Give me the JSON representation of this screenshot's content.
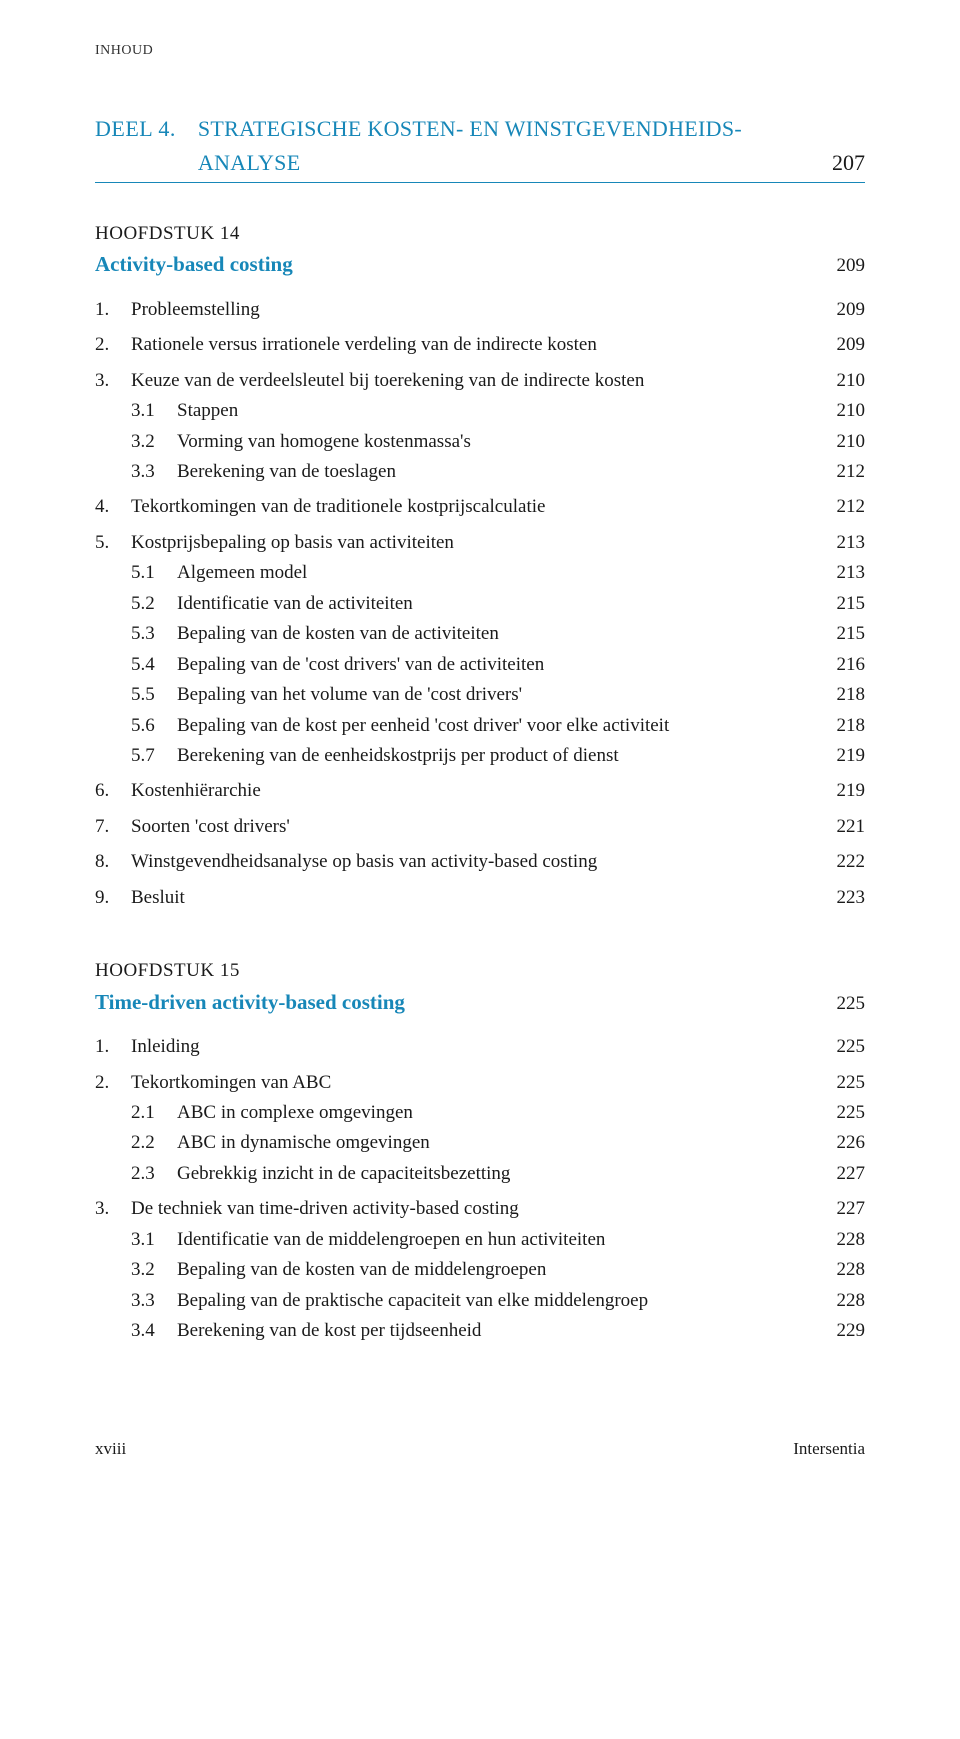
{
  "colors": {
    "accent": "#1787b8",
    "rule": "#1787b8",
    "text": "#1a1a1a"
  },
  "runningHead": "INHOUD",
  "part": {
    "label": "DEEL 4.",
    "title": "STRATEGISCHE KOSTEN- EN WINSTGEVENDHEIDS­ANALYSE",
    "titleLine1": "STRATEGISCHE KOSTEN- EN WINSTGEVENDHEIDS-",
    "titleLine2": "ANALYSE",
    "page": "207"
  },
  "chapters": [
    {
      "label": "HOOFDSTUK 14",
      "title": "Activity-based costing",
      "page": "209",
      "entries": [
        {
          "n": "1.",
          "t": "Probleemstelling",
          "p": "209",
          "top": true
        },
        {
          "n": "2.",
          "t": "Rationele versus irrationele verdeling van de indirecte kosten",
          "p": "209",
          "top": true
        },
        {
          "n": "3.",
          "t": "Keuze van de verdeelsleutel bij toerekening van de indirecte kosten",
          "p": "210",
          "top": true
        },
        {
          "s": "3.1",
          "t": "Stappen",
          "p": "210"
        },
        {
          "s": "3.2",
          "t": "Vorming van homogene kostenmassa's",
          "p": "210"
        },
        {
          "s": "3.3",
          "t": "Berekening van de toeslagen",
          "p": "212"
        },
        {
          "n": "4.",
          "t": "Tekortkomingen van de traditionele kostprijscalculatie",
          "p": "212",
          "top": true
        },
        {
          "n": "5.",
          "t": "Kostprijsbepaling op basis van activiteiten",
          "p": "213",
          "top": true
        },
        {
          "s": "5.1",
          "t": "Algemeen model",
          "p": "213"
        },
        {
          "s": "5.2",
          "t": "Identificatie van de activiteiten",
          "p": "215"
        },
        {
          "s": "5.3",
          "t": "Bepaling van de kosten van de activiteiten",
          "p": "215"
        },
        {
          "s": "5.4",
          "t": "Bepaling van de 'cost drivers' van de activiteiten",
          "p": "216"
        },
        {
          "s": "5.5",
          "t": "Bepaling van het volume van de 'cost drivers'",
          "p": "218"
        },
        {
          "s": "5.6",
          "t": "Bepaling van de kost per eenheid 'cost driver' voor elke activiteit",
          "p": "218"
        },
        {
          "s": "5.7",
          "t": "Berekening van de eenheidskostprijs per product of dienst",
          "p": "219"
        },
        {
          "n": "6.",
          "t": "Kostenhiërarchie",
          "p": "219",
          "top": true
        },
        {
          "n": "7.",
          "t": "Soorten 'cost drivers'",
          "p": "221",
          "top": true
        },
        {
          "n": "8.",
          "t": "Winstgevendheidsanalyse op basis van activity-based costing",
          "p": "222",
          "top": true
        },
        {
          "n": "9.",
          "t": "Besluit",
          "p": "223",
          "top": true
        }
      ]
    },
    {
      "label": "HOOFDSTUK 15",
      "title": "Time-driven activity-based costing",
      "page": "225",
      "entries": [
        {
          "n": "1.",
          "t": "Inleiding",
          "p": "225",
          "top": true
        },
        {
          "n": "2.",
          "t": "Tekortkomingen van ABC",
          "p": "225",
          "top": true
        },
        {
          "s": "2.1",
          "t": "ABC in complexe omgevingen",
          "p": "225"
        },
        {
          "s": "2.2",
          "t": "ABC in dynamische omgevingen",
          "p": "226"
        },
        {
          "s": "2.3",
          "t": "Gebrekkig inzicht in de capaciteitsbezetting",
          "p": "227"
        },
        {
          "n": "3.",
          "t": "De techniek van time-driven activity-based costing",
          "p": "227",
          "top": true
        },
        {
          "s": "3.1",
          "t": "Identificatie van de middelengroepen en hun activiteiten",
          "p": "228"
        },
        {
          "s": "3.2",
          "t": "Bepaling van de kosten van de middelengroepen",
          "p": "228"
        },
        {
          "s": "3.3",
          "t": "Bepaling van de praktische capaciteit van elke middelengroep",
          "p": "228"
        },
        {
          "s": "3.4",
          "t": "Berekening van de kost per tijdseenheid",
          "p": "229"
        }
      ]
    }
  ],
  "footer": {
    "left": "xviii",
    "right": "Intersentia"
  }
}
